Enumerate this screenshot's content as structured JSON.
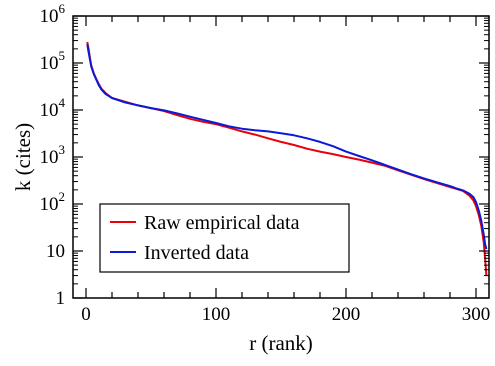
{
  "chart_data": {
    "type": "line",
    "title": "",
    "xlabel": "r (rank)",
    "ylabel": "k (cites)",
    "xlim": [
      -10,
      310
    ],
    "ylim": [
      1,
      1000000
    ],
    "y_scale": "log",
    "grid": false,
    "legend_position": "bottom-left",
    "x_ticks": [
      {
        "value": 0,
        "label": "0"
      },
      {
        "value": 100,
        "label": "100"
      },
      {
        "value": 200,
        "label": "200"
      },
      {
        "value": 300,
        "label": "300"
      }
    ],
    "y_ticks": [
      {
        "value": 1,
        "base": "1",
        "exp": ""
      },
      {
        "value": 10,
        "base": "10",
        "exp": ""
      },
      {
        "value": 100,
        "base": "10",
        "exp": "2"
      },
      {
        "value": 1000,
        "base": "10",
        "exp": "3"
      },
      {
        "value": 10000,
        "base": "10",
        "exp": "4"
      },
      {
        "value": 100000,
        "base": "10",
        "exp": "5"
      },
      {
        "value": 1000000,
        "base": "10",
        "exp": "6"
      }
    ],
    "series": [
      {
        "name": "Raw empirical data",
        "color": "#e8000b",
        "x": [
          1,
          2,
          3,
          4,
          6,
          8,
          10,
          12,
          15,
          20,
          30,
          40,
          50,
          60,
          70,
          80,
          90,
          100,
          110,
          120,
          130,
          140,
          150,
          160,
          170,
          180,
          190,
          200,
          210,
          220,
          230,
          240,
          250,
          260,
          270,
          280,
          285,
          290,
          295,
          298,
          300,
          302,
          304,
          306,
          307,
          308
        ],
        "y": [
          280000,
          200000,
          130000,
          90000,
          60000,
          45000,
          35000,
          28000,
          23000,
          18000,
          15000,
          12500,
          11000,
          9500,
          7800,
          6500,
          5600,
          5000,
          4200,
          3500,
          3000,
          2500,
          2100,
          1800,
          1500,
          1300,
          1150,
          1000,
          880,
          760,
          650,
          520,
          420,
          340,
          280,
          230,
          210,
          190,
          150,
          120,
          90,
          60,
          35,
          15,
          7,
          3
        ]
      },
      {
        "name": "Inverted data",
        "color": "#0a1ad6",
        "x": [
          1,
          2,
          3,
          4,
          6,
          8,
          10,
          12,
          15,
          20,
          30,
          40,
          50,
          60,
          70,
          80,
          90,
          100,
          110,
          120,
          130,
          140,
          150,
          160,
          170,
          180,
          190,
          200,
          210,
          220,
          230,
          240,
          250,
          260,
          270,
          280,
          285,
          290,
          295,
          298,
          300,
          302,
          304,
          306,
          307,
          308
        ],
        "y": [
          250000,
          170000,
          120000,
          85000,
          58000,
          44000,
          33000,
          27000,
          22000,
          18000,
          14500,
          12500,
          11000,
          9800,
          8500,
          7200,
          6200,
          5300,
          4500,
          4000,
          3700,
          3500,
          3200,
          2900,
          2500,
          2100,
          1700,
          1300,
          1050,
          850,
          680,
          540,
          430,
          350,
          290,
          240,
          215,
          195,
          165,
          140,
          110,
          75,
          45,
          22,
          14,
          11
        ]
      }
    ]
  }
}
